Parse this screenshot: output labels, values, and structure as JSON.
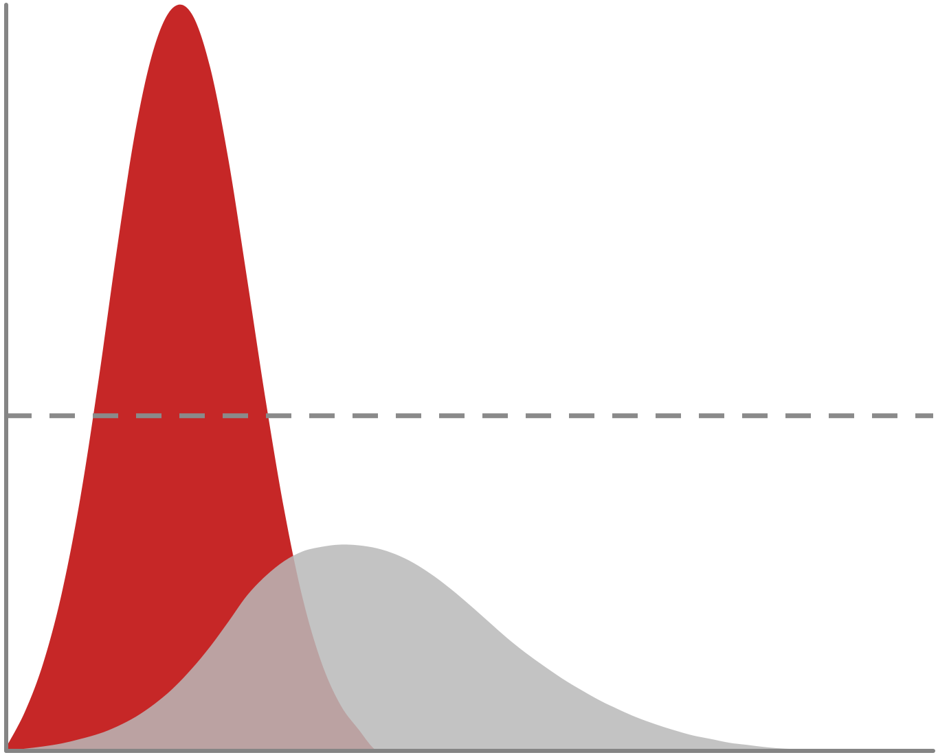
{
  "chart_data": {
    "type": "area",
    "title": "",
    "xlabel": "",
    "ylabel": "",
    "xlim": [
      0,
      100
    ],
    "ylim": [
      0,
      100
    ],
    "grid": false,
    "legend": "none",
    "x": [
      0,
      2,
      4,
      6,
      8,
      10,
      12,
      14,
      16,
      18,
      20,
      22,
      24,
      26,
      28,
      30,
      32,
      34,
      36,
      38,
      40,
      42,
      44,
      46,
      48,
      50,
      52,
      54,
      56,
      58,
      60,
      62,
      64,
      66,
      68,
      70,
      72,
      74,
      76,
      78,
      80,
      82,
      84,
      86,
      88,
      90,
      92,
      94,
      96,
      98,
      100
    ],
    "series": [
      {
        "color": "#c62727",
        "opacity": 1,
        "values": [
          0.5,
          5.2,
          11.8,
          21.2,
          34.0,
          50.1,
          67.8,
          83.7,
          94.6,
          99.8,
          99.0,
          91.8,
          79.2,
          63.3,
          47.0,
          32.3,
          20.4,
          11.9,
          6.3,
          2.9,
          0.0,
          0.0,
          0.0,
          0.0,
          0.0,
          0.0,
          0.0,
          0.0,
          0.0,
          0.0,
          0.0,
          0.0,
          0.0,
          0.0,
          0.0,
          0.0,
          0.0,
          0.0,
          0.0,
          0.0,
          0.0,
          0.0,
          0.0,
          0.0,
          0.0,
          0.0,
          0.0,
          0.0,
          0.0,
          0.0,
          0.0
        ]
      },
      {
        "color": "#b9b9b9",
        "opacity": 0.85,
        "values": [
          0.0,
          0.3,
          0.6,
          1.0,
          1.6,
          2.3,
          3.3,
          4.6,
          6.3,
          8.4,
          11.0,
          14.0,
          17.4,
          20.9,
          23.5,
          25.5,
          26.8,
          27.4,
          27.7,
          27.6,
          27.2,
          26.4,
          25.2,
          23.6,
          21.7,
          19.6,
          17.4,
          15.2,
          13.2,
          11.4,
          9.7,
          8.2,
          6.8,
          5.6,
          4.5,
          3.6,
          2.8,
          2.1,
          1.6,
          1.1,
          0.8,
          0.5,
          0.3,
          0.2,
          0.1,
          0.1,
          0.0,
          0.0,
          0.0,
          0.0,
          0.0
        ]
      }
    ],
    "reference_line": {
      "y": 45,
      "style": "dashed",
      "color": "#8a8a8a"
    },
    "axis_color": "#858585"
  }
}
